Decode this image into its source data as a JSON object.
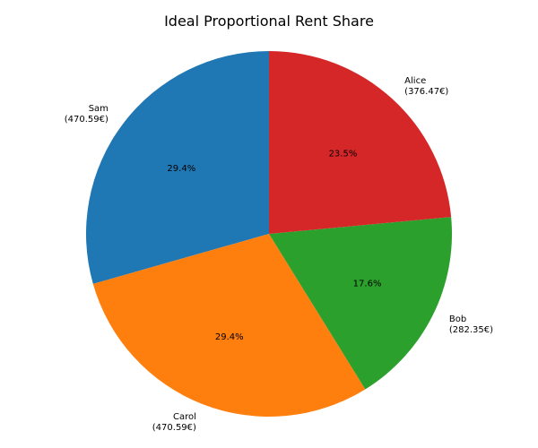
{
  "chart_data": {
    "type": "pie",
    "title": "Ideal Proportional Rent Share",
    "start_angle_deg": 90,
    "direction": "counterclockwise",
    "slices": [
      {
        "name": "Sam",
        "value": 470.59,
        "value_text": "(470.59€)",
        "pct_text": "29.4%",
        "color": "#1f77b4"
      },
      {
        "name": "Carol",
        "value": 470.59,
        "value_text": "(470.59€)",
        "pct_text": "29.4%",
        "color": "#ff7f0e"
      },
      {
        "name": "Bob",
        "value": 282.35,
        "value_text": "(282.35€)",
        "pct_text": "17.6%",
        "color": "#2ca02c"
      },
      {
        "name": "Alice",
        "value": 376.47,
        "value_text": "(376.47€)",
        "pct_text": "23.5%",
        "color": "#d62728"
      }
    ]
  }
}
